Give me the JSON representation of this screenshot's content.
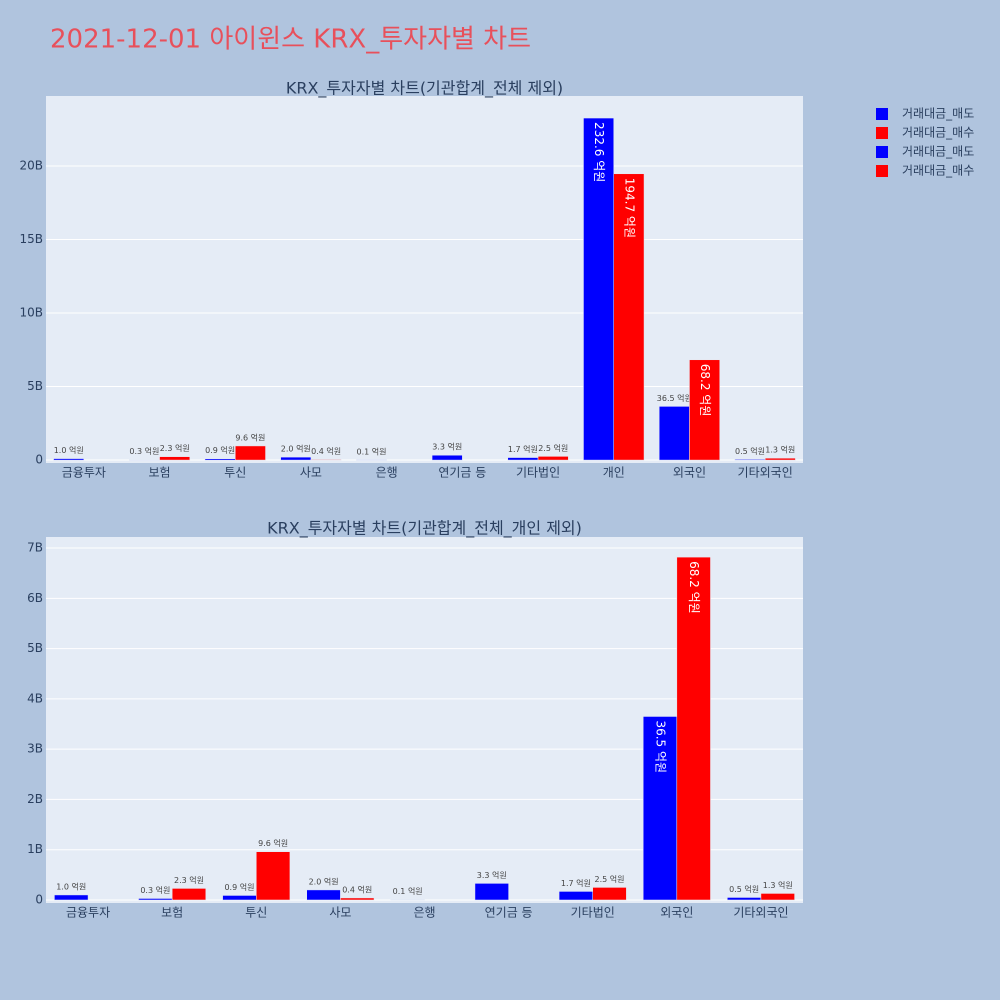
{
  "title": "2021-12-01 아이윈스 KRX_투자자별 차트",
  "chart_data": [
    {
      "type": "bar",
      "title": "KRX_투자자별 차트(기관합계_전체 제외)",
      "categories": [
        "금융투자",
        "보험",
        "투신",
        "사모",
        "은행",
        "연기금 등",
        "기타법인",
        "개인",
        "외국인",
        "기타외국인"
      ],
      "series": [
        {
          "name": "거래대금_매도",
          "color": "#0000ff",
          "values": [
            100000000,
            30000000,
            90000000,
            200000000,
            10000000,
            330000000,
            170000000,
            23260000000,
            3650000000,
            50000000
          ],
          "value_labels": [
            "1.0 억원",
            "0.3 억원",
            "0.9 억원",
            "2.0 억원",
            "0.1 억원",
            "3.3 억원",
            "1.7 억원",
            "232.6 억원",
            "36.5 억원",
            "0.5 억원"
          ]
        },
        {
          "name": "거래대금_매수",
          "color": "#ff0000",
          "values": [
            null,
            230000000,
            960000000,
            40000000,
            null,
            null,
            250000000,
            19470000000,
            6820000000,
            130000000
          ],
          "value_labels": [
            null,
            "2.3 억원",
            "9.6 억원",
            "0.4 억원",
            null,
            null,
            "2.5 억원",
            "194.7 억원",
            "68.2 억원",
            "1.3 억원"
          ]
        }
      ],
      "ylim": [
        -200000000,
        24760000000
      ],
      "yticks": [
        0,
        {
          "value": 5000000000,
          "label": "5B"
        },
        {
          "value": 10000000000,
          "label": "10B"
        },
        {
          "value": 15000000000,
          "label": "15B"
        },
        {
          "value": 20000000000,
          "label": "20B"
        }
      ],
      "grid": true
    },
    {
      "type": "bar",
      "title": "KRX_투자자별 차트(기관합계_전체_개인 제외)",
      "categories": [
        "금융투자",
        "보험",
        "투신",
        "사모",
        "은행",
        "연기금 등",
        "기타법인",
        "외국인",
        "기타외국인"
      ],
      "series": [
        {
          "name": "거래대금_매도",
          "color": "#0000ff",
          "values": [
            100000000,
            30000000,
            90000000,
            200000000,
            10000000,
            330000000,
            170000000,
            3650000000,
            50000000
          ],
          "value_labels": [
            "1.0 억원",
            "0.3 억원",
            "0.9 억원",
            "2.0 억원",
            "0.1 억원",
            "3.3 억원",
            "1.7 억원",
            "36.5 억원",
            "0.5 억원"
          ]
        },
        {
          "name": "거래대금_매수",
          "color": "#ff0000",
          "values": [
            null,
            230000000,
            960000000,
            40000000,
            null,
            null,
            250000000,
            6820000000,
            130000000
          ],
          "value_labels": [
            null,
            "2.3 억원",
            "9.6 억원",
            "0.4 억원",
            null,
            null,
            "2.5 억원",
            "68.2 억원",
            "1.3 억원"
          ]
        }
      ],
      "ylim": [
        -60000000,
        7220000000
      ],
      "yticks": [
        0,
        {
          "value": 1000000000,
          "label": "1B"
        },
        {
          "value": 2000000000,
          "label": "2B"
        },
        {
          "value": 3000000000,
          "label": "3B"
        },
        {
          "value": 4000000000,
          "label": "4B"
        },
        {
          "value": 5000000000,
          "label": "5B"
        },
        {
          "value": 6000000000,
          "label": "6B"
        },
        {
          "value": 7000000000,
          "label": "7B"
        }
      ],
      "grid": true
    }
  ]
}
